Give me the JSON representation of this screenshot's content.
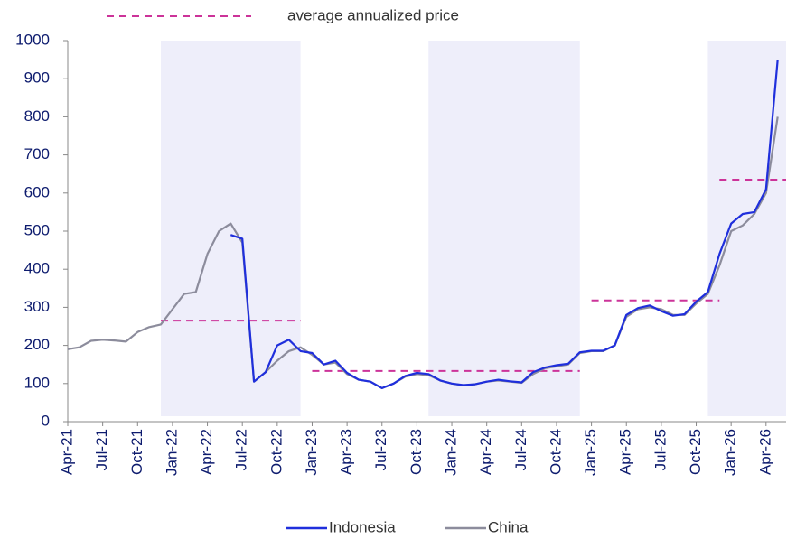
{
  "chart_data": {
    "type": "line",
    "x": [
      "2021-04",
      "2021-05",
      "2021-06",
      "2021-07",
      "2021-08",
      "2021-09",
      "2021-10",
      "2021-11",
      "2021-12",
      "2022-01",
      "2022-02",
      "2022-03",
      "2022-04",
      "2022-05",
      "2022-06",
      "2022-07",
      "2022-08",
      "2022-09",
      "2022-10",
      "2022-11",
      "2022-12",
      "2023-01",
      "2023-02",
      "2023-03",
      "2023-04",
      "2023-05",
      "2023-06",
      "2023-07",
      "2023-08",
      "2023-09",
      "2023-10",
      "2023-11",
      "2023-12",
      "2024-01",
      "2024-02",
      "2024-03",
      "2024-04",
      "2024-05",
      "2024-06",
      "2024-07",
      "2024-08",
      "2024-09",
      "2024-10",
      "2024-11",
      "2024-12",
      "2025-01",
      "2025-02",
      "2025-03",
      "2025-04",
      "2025-05",
      "2025-06",
      "2025-07",
      "2025-08",
      "2025-09",
      "2025-10",
      "2025-11",
      "2025-12",
      "2026-01",
      "2026-02",
      "2026-03",
      "2026-04",
      "2026-05"
    ],
    "series": [
      {
        "name": "Indonesia",
        "color": "#1f2fdc",
        "values": [
          null,
          null,
          null,
          null,
          null,
          null,
          null,
          null,
          null,
          null,
          null,
          null,
          null,
          null,
          490,
          480,
          105,
          130,
          200,
          215,
          185,
          180,
          150,
          160,
          128,
          110,
          105,
          88,
          100,
          120,
          128,
          125,
          108,
          100,
          96,
          98,
          105,
          110,
          106,
          103,
          130,
          142,
          148,
          152,
          182,
          186,
          186,
          200,
          280,
          298,
          305,
          290,
          278,
          282,
          315,
          340,
          440,
          520,
          545,
          550,
          610,
          950
        ]
      },
      {
        "name": "China",
        "color": "#8c8c9c",
        "values": [
          190,
          195,
          212,
          215,
          213,
          210,
          235,
          248,
          255,
          295,
          335,
          340,
          440,
          500,
          520,
          470,
          105,
          130,
          160,
          185,
          195,
          175,
          150,
          155,
          125,
          110,
          105,
          88,
          100,
          118,
          125,
          122,
          108,
          100,
          95,
          98,
          105,
          108,
          105,
          102,
          125,
          140,
          145,
          150,
          180,
          185,
          185,
          200,
          275,
          295,
          300,
          295,
          280,
          280,
          310,
          335,
          410,
          500,
          515,
          545,
          600,
          800
        ]
      }
    ],
    "average_label": "average annualized price",
    "average_color": "#cc3399",
    "averages": [
      {
        "start": "2021-12",
        "end": "2022-12",
        "value": 265
      },
      {
        "start": "2023-01",
        "end": "2024-12",
        "value": 133
      },
      {
        "start": "2025-01",
        "end": "2025-12",
        "value": 318
      },
      {
        "start": "2025-12",
        "end": "2026-06",
        "value": 635
      }
    ],
    "shaded_periods": [
      {
        "start": "2021-12",
        "end": "2022-12"
      },
      {
        "start": "2023-11",
        "end": "2024-12"
      },
      {
        "start": "2025-11",
        "end": "2026-06"
      }
    ],
    "shade_color": "#eeeefa",
    "ylim": [
      0,
      1000
    ],
    "yticks": [
      0,
      100,
      200,
      300,
      400,
      500,
      600,
      700,
      800,
      900,
      1000
    ],
    "xticks": [
      {
        "value": "2021-04",
        "label": "Apr-21"
      },
      {
        "value": "2021-07",
        "label": "Jul-21"
      },
      {
        "value": "2021-10",
        "label": "Oct-21"
      },
      {
        "value": "2022-01",
        "label": "Jan-22"
      },
      {
        "value": "2022-04",
        "label": "Apr-22"
      },
      {
        "value": "2022-07",
        "label": "Jul-22"
      },
      {
        "value": "2022-10",
        "label": "Oct-22"
      },
      {
        "value": "2023-01",
        "label": "Jan-23"
      },
      {
        "value": "2023-04",
        "label": "Apr-23"
      },
      {
        "value": "2023-07",
        "label": "Jul-23"
      },
      {
        "value": "2023-10",
        "label": "Oct-23"
      },
      {
        "value": "2024-01",
        "label": "Jan-24"
      },
      {
        "value": "2024-04",
        "label": "Apr-24"
      },
      {
        "value": "2024-07",
        "label": "Jul-24"
      },
      {
        "value": "2024-10",
        "label": "Oct-24"
      },
      {
        "value": "2025-01",
        "label": "Jan-25"
      },
      {
        "value": "2025-04",
        "label": "Apr-25"
      },
      {
        "value": "2025-07",
        "label": "Jul-25"
      },
      {
        "value": "2025-10",
        "label": "Oct-25"
      },
      {
        "value": "2026-01",
        "label": "Jan-26"
      },
      {
        "value": "2026-04",
        "label": "Apr-26"
      }
    ]
  }
}
